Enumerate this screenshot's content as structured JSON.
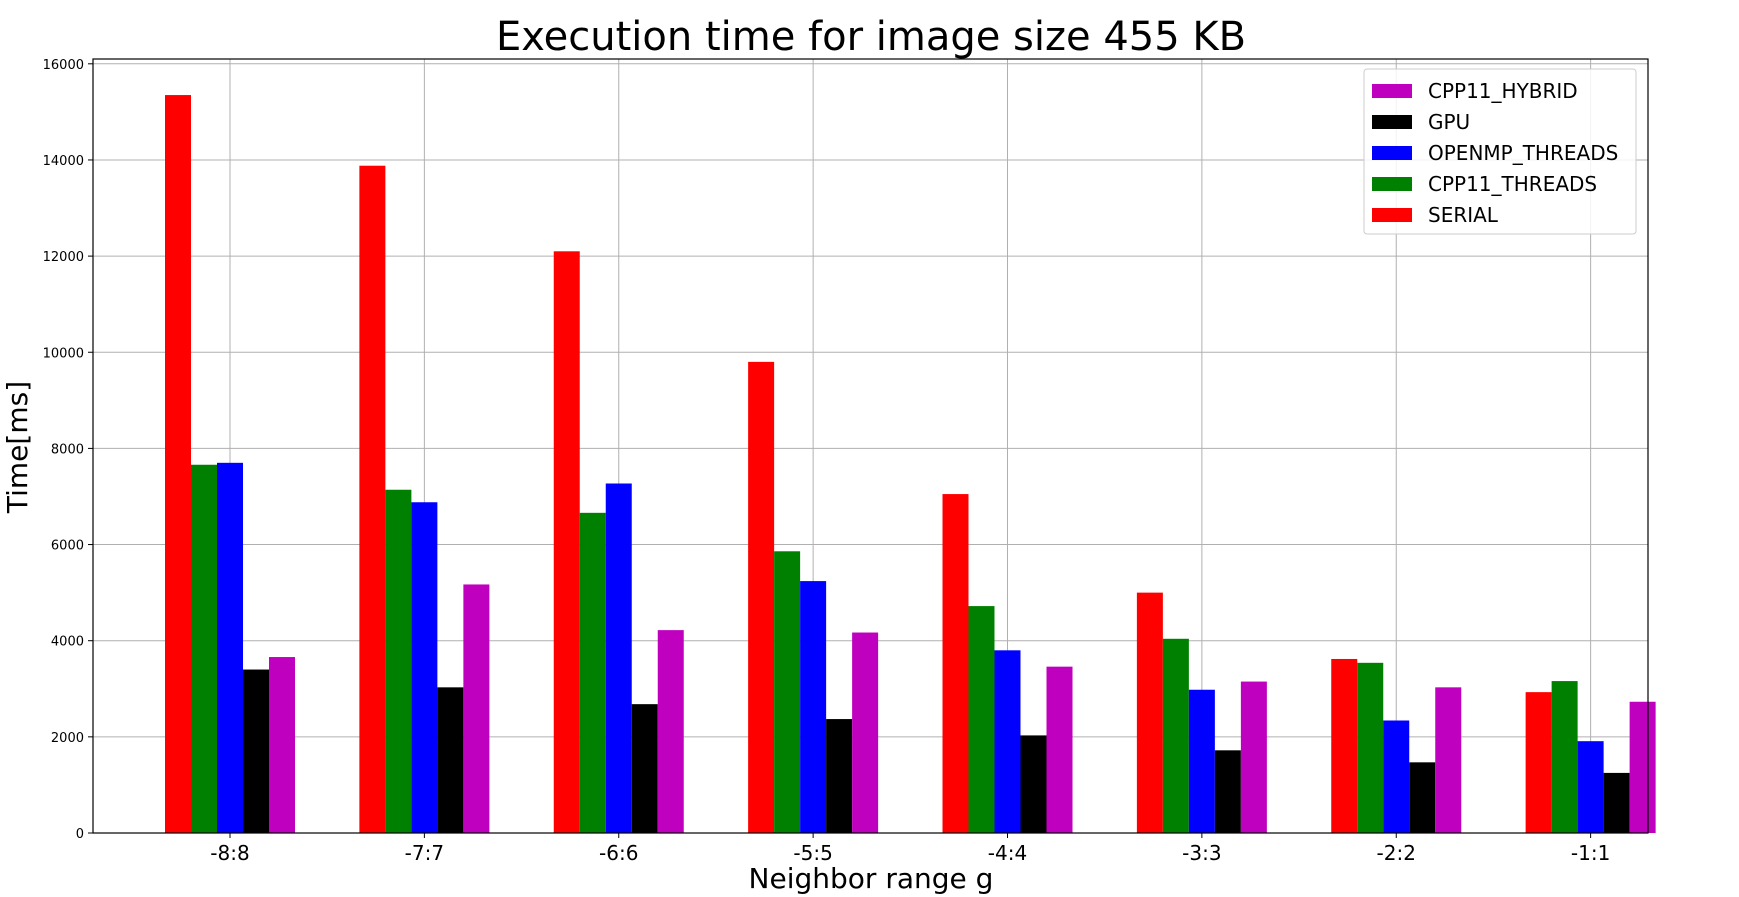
{
  "chart_data": {
    "type": "bar",
    "title": "Execution time for image size 455 KB",
    "xlabel": "Neighbor range g",
    "ylabel": "Time[ms]",
    "ylim": [
      0,
      16100
    ],
    "yticks": [
      0,
      2000,
      4000,
      6000,
      8000,
      10000,
      12000,
      14000,
      16000
    ],
    "grid": true,
    "legend_position": "top-right",
    "categories": [
      "-8:8",
      "-7:7",
      "-6:6",
      "-5:5",
      "-4:4",
      "-3:3",
      "-2:2",
      "-1:1"
    ],
    "series": [
      {
        "name": "SERIAL",
        "color": "#ff0000",
        "values": [
          15350,
          13880,
          12100,
          9800,
          7050,
          5000,
          3620,
          2930
        ]
      },
      {
        "name": "CPP11_THREADS",
        "color": "#008000",
        "values": [
          7660,
          7140,
          6660,
          5860,
          4720,
          4040,
          3540,
          3160
        ]
      },
      {
        "name": "OPENMP_THREADS",
        "color": "#0000ff",
        "values": [
          7700,
          6880,
          7270,
          5240,
          3800,
          2980,
          2340,
          1910
        ]
      },
      {
        "name": "GPU",
        "color": "#000000",
        "values": [
          3400,
          3030,
          2680,
          2370,
          2030,
          1720,
          1470,
          1250
        ]
      },
      {
        "name": "CPP11_HYBRID",
        "color": "#bf00bf",
        "values": [
          3660,
          5170,
          4220,
          4170,
          3460,
          3150,
          3030,
          2730
        ]
      }
    ],
    "legend_order": [
      "CPP11_HYBRID",
      "GPU",
      "OPENMP_THREADS",
      "CPP11_THREADS",
      "SERIAL"
    ]
  }
}
